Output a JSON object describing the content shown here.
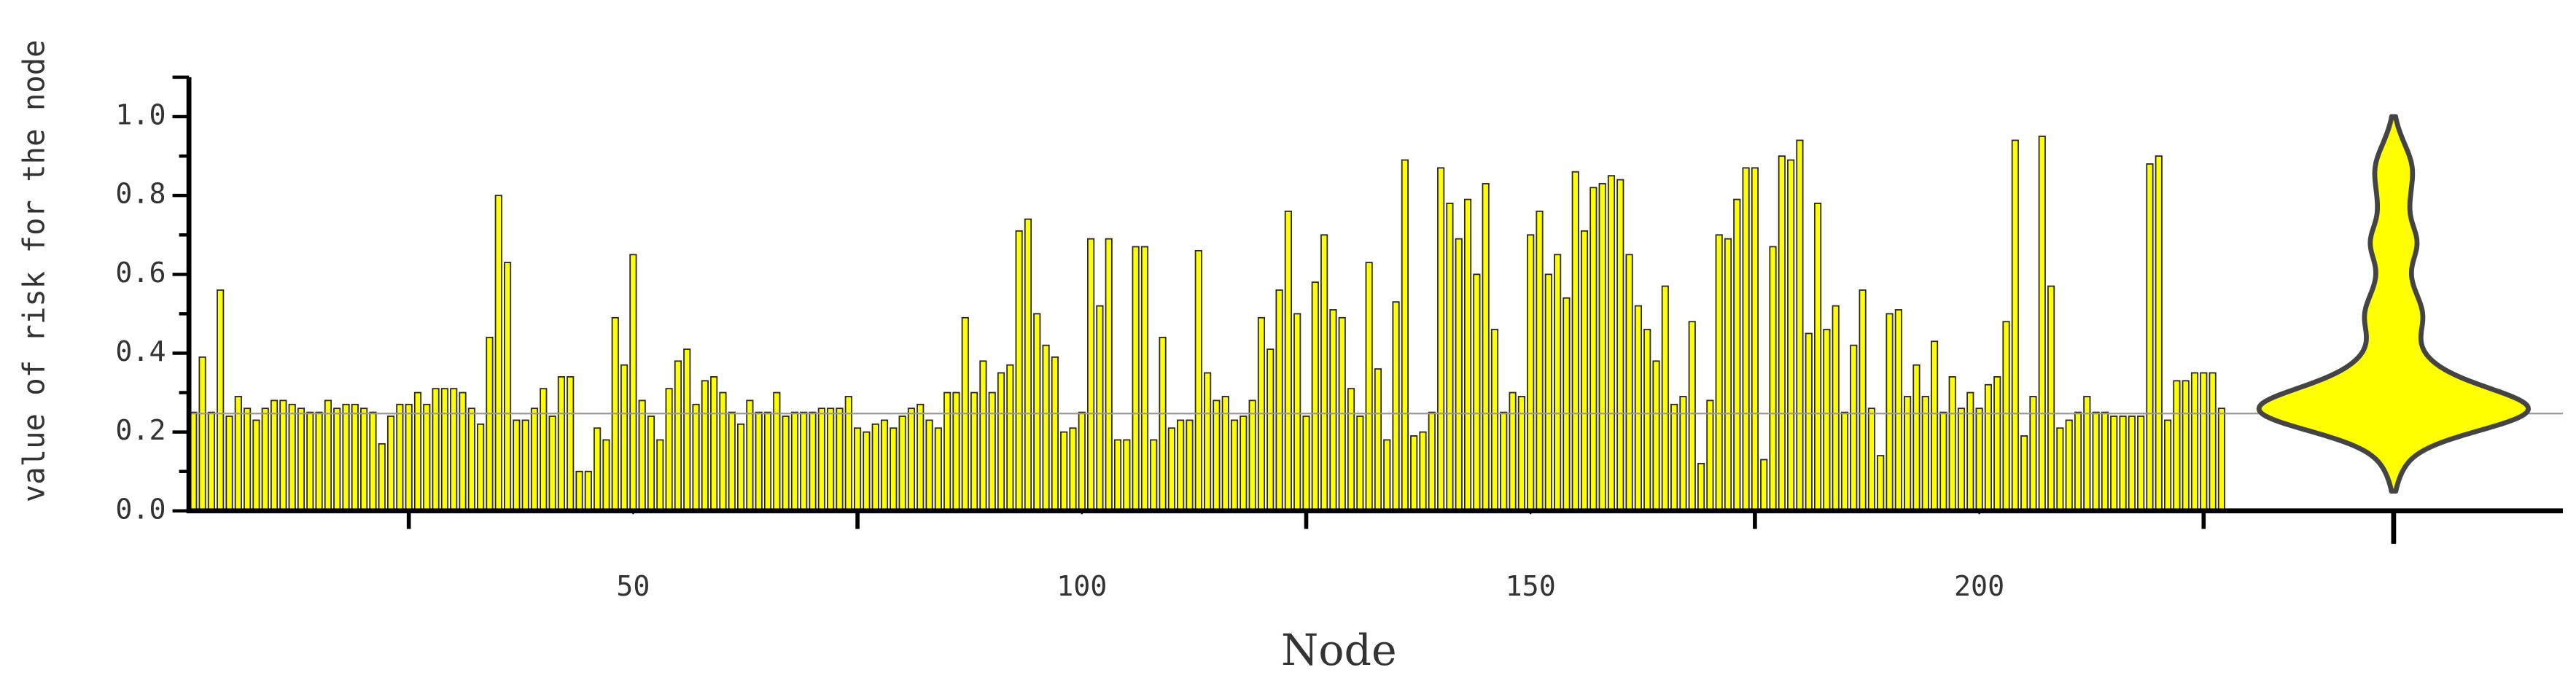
{
  "chart_data": {
    "type": "bar",
    "x_label": "Node",
    "y_label": "value of risk for the node",
    "xlim": [
      0.5,
      227.5
    ],
    "ylim": [
      0,
      1.1
    ],
    "xticks": [
      50,
      100,
      150,
      200
    ],
    "xminorticks": [
      25,
      75,
      125,
      175,
      225
    ],
    "yticks": [
      {
        "value": 0,
        "label": "0.0"
      },
      {
        "value": 0.2,
        "label": "0.2"
      },
      {
        "value": 0.4,
        "label": "0.4"
      },
      {
        "value": 0.6,
        "label": "0.6"
      },
      {
        "value": 0.8,
        "label": "0.8"
      },
      {
        "value": 1,
        "label": "1.0"
      }
    ],
    "yminorticks": [
      0.1,
      0.3,
      0.5,
      0.7,
      0.9
    ],
    "reference_line": 0.247,
    "color": "#ffff00",
    "violin": true,
    "values": [
      0.25,
      0.39,
      0.25,
      0.56,
      0.24,
      0.29,
      0.26,
      0.23,
      0.26,
      0.28,
      0.28,
      0.27,
      0.26,
      0.25,
      0.25,
      0.28,
      0.26,
      0.27,
      0.27,
      0.26,
      0.25,
      0.17,
      0.24,
      0.27,
      0.27,
      0.3,
      0.27,
      0.31,
      0.31,
      0.31,
      0.3,
      0.26,
      0.22,
      0.44,
      0.8,
      0.63,
      0.23,
      0.23,
      0.26,
      0.31,
      0.24,
      0.34,
      0.34,
      0.1,
      0.1,
      0.21,
      0.18,
      0.49,
      0.37,
      0.65,
      0.28,
      0.24,
      0.18,
      0.31,
      0.38,
      0.41,
      0.27,
      0.33,
      0.34,
      0.3,
      0.25,
      0.22,
      0.28,
      0.25,
      0.25,
      0.3,
      0.24,
      0.25,
      0.25,
      0.25,
      0.26,
      0.26,
      0.26,
      0.29,
      0.21,
      0.2,
      0.22,
      0.23,
      0.21,
      0.24,
      0.26,
      0.27,
      0.23,
      0.21,
      0.3,
      0.3,
      0.49,
      0.3,
      0.38,
      0.3,
      0.35,
      0.37,
      0.71,
      0.74,
      0.5,
      0.42,
      0.39,
      0.2,
      0.21,
      0.25,
      0.69,
      0.52,
      0.69,
      0.18,
      0.18,
      0.67,
      0.67,
      0.18,
      0.44,
      0.21,
      0.23,
      0.23,
      0.66,
      0.35,
      0.28,
      0.29,
      0.23,
      0.24,
      0.28,
      0.49,
      0.41,
      0.56,
      0.76,
      0.5,
      0.24,
      0.58,
      0.7,
      0.51,
      0.49,
      0.31,
      0.24,
      0.63,
      0.36,
      0.18,
      0.53,
      0.89,
      0.19,
      0.2,
      0.25,
      0.87,
      0.78,
      0.69,
      0.79,
      0.6,
      0.83,
      0.46,
      0.25,
      0.3,
      0.29,
      0.7,
      0.76,
      0.6,
      0.65,
      0.54,
      0.86,
      0.71,
      0.82,
      0.83,
      0.85,
      0.84,
      0.65,
      0.52,
      0.46,
      0.38,
      0.57,
      0.27,
      0.29,
      0.48,
      0.12,
      0.28,
      0.7,
      0.69,
      0.79,
      0.87,
      0.87,
      0.13,
      0.67,
      0.9,
      0.89,
      0.94,
      0.45,
      0.78,
      0.46,
      0.52,
      0.25,
      0.42,
      0.56,
      0.26,
      0.14,
      0.5,
      0.51,
      0.29,
      0.37,
      0.29,
      0.43,
      0.25,
      0.34,
      0.26,
      0.3,
      0.26,
      0.32,
      0.34,
      0.48,
      0.94,
      0.19,
      0.29,
      0.95,
      0.57,
      0.21,
      0.23,
      0.25,
      0.29,
      0.25,
      0.25,
      0.24,
      0.24,
      0.24,
      0.24,
      0.88,
      0.9,
      0.23,
      0.33,
      0.33,
      0.35,
      0.35,
      0.35,
      0.26
    ]
  }
}
